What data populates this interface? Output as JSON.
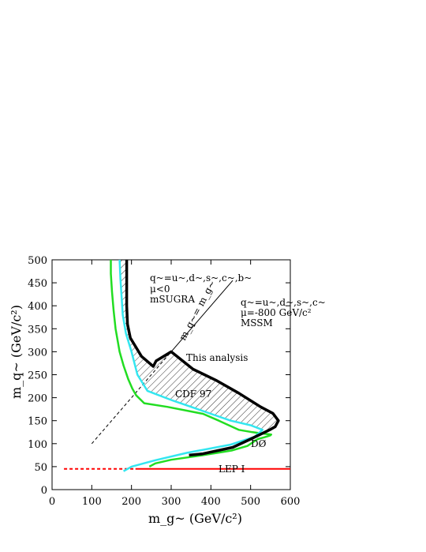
{
  "chart_data": {
    "type": "line",
    "title": "",
    "xlabel": "m_g~ (GeV/c²)",
    "ylabel": "m_q~ (GeV/c²)",
    "xlim": [
      0,
      600
    ],
    "ylim": [
      0,
      500
    ],
    "xticks": [
      0,
      100,
      200,
      300,
      400,
      500,
      600
    ],
    "yticks": [
      0,
      50,
      100,
      150,
      200,
      250,
      300,
      350,
      400,
      450,
      500
    ],
    "grid": false,
    "colors": {
      "this_analysis": "#000000",
      "cdf97": "#33e6f0",
      "d0": "#22dd22",
      "lep": "#ff0000",
      "hatch": "#222222"
    },
    "series": [
      {
        "name": "This analysis",
        "x": [
          188,
          188,
          188,
          190,
          197,
          225,
          255,
          262,
          300,
          355,
          415,
          470,
          525,
          556,
          570,
          562,
          548,
          500,
          455,
          380,
          345
        ],
        "y": [
          500,
          440,
          400,
          360,
          330,
          290,
          268,
          280,
          300,
          262,
          237,
          210,
          180,
          166,
          150,
          137,
          130,
          110,
          92,
          78,
          75
        ]
      },
      {
        "name": "CDF 97",
        "x": [
          170,
          172,
          175,
          178,
          186,
          200,
          215,
          240,
          300,
          350,
          400,
          450,
          500,
          530,
          510,
          450,
          340,
          260,
          200,
          180
        ],
        "y": [
          500,
          460,
          420,
          380,
          340,
          300,
          250,
          215,
          195,
          180,
          165,
          150,
          140,
          130,
          115,
          98,
          80,
          64,
          50,
          40
        ]
      },
      {
        "name": "DØ",
        "x": [
          148,
          148,
          151,
          155,
          160,
          170,
          180,
          192,
          202,
          212,
          232,
          290,
          380,
          420,
          470,
          505,
          530,
          552,
          550,
          535,
          518,
          492,
          452,
          380,
          300,
          260,
          245
        ],
        "y": [
          500,
          470,
          430,
          390,
          350,
          300,
          270,
          240,
          220,
          205,
          188,
          180,
          165,
          150,
          130,
          125,
          122,
          120,
          118,
          114,
          110,
          95,
          85,
          75,
          65,
          57,
          50
        ]
      },
      {
        "name": "LEP I",
        "x": [
          0,
          30,
          210,
          600
        ],
        "y": [
          45,
          45,
          45,
          45
        ]
      }
    ],
    "diagonal": {
      "label": "m_q~ = m_g~",
      "x": [
        100,
        300,
        455
      ],
      "y": [
        100,
        300,
        455
      ]
    },
    "annotations": {
      "msugra": [
        "q~=u~,d~,s~,c~,b~",
        "μ<0",
        "mSUGRA"
      ],
      "mssm": [
        "q~=u~,d~,s~,c~",
        "μ=-800 GeV/c²",
        "MSSM"
      ],
      "this_analysis": "This analysis",
      "cdf": "CDF 97",
      "d0": "DØ",
      "lep": "LEP I",
      "diagonal": "m_q~= m_g~"
    }
  }
}
